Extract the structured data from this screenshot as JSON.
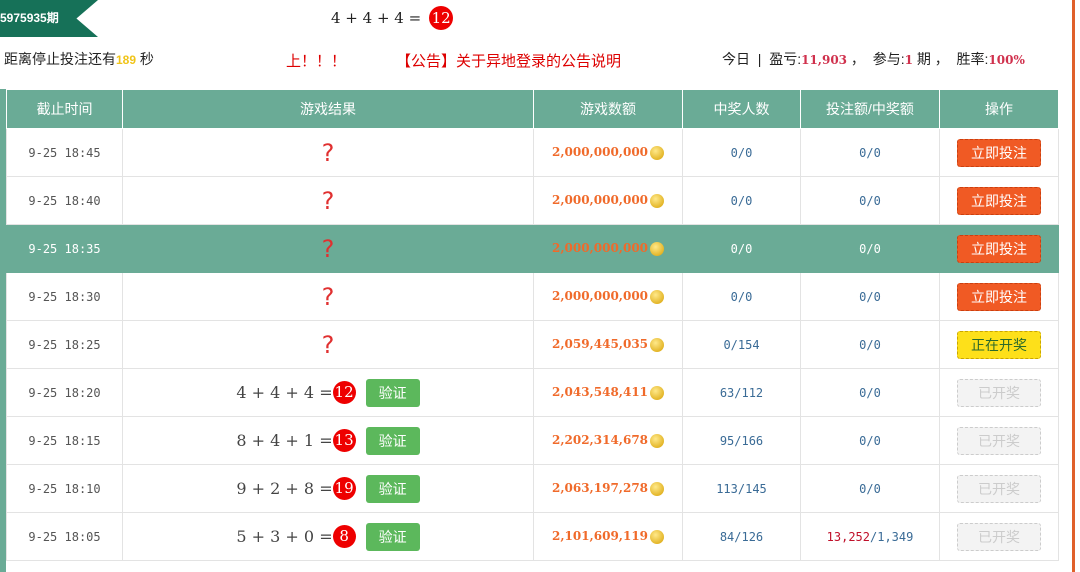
{
  "header": {
    "period": "5975935期",
    "equation": "4 + 4 + 4 =",
    "result": "12",
    "countdown_prefix": "距离停止投注还有",
    "countdown_seconds": "189",
    "countdown_suffix": "秒",
    "marquee_a": "上！！！",
    "marquee_b": "【公告】关于异地登录的公告说明",
    "marquee_c": "【"
  },
  "stats": {
    "today": "今日",
    "sep": "|",
    "profit_label": "盈亏:",
    "profit": "11,903",
    "sep2": "，",
    "join_label": "参与:",
    "join": "1",
    "join_unit": "期",
    "sep3": "，",
    "win_label": "胜率:",
    "win": "100%"
  },
  "columns": [
    "截止时间",
    "游戏结果",
    "游戏数额",
    "中奖人数",
    "投注额/中奖额",
    "操作"
  ],
  "rows": [
    {
      "time": "9-25 18:45",
      "result": "?",
      "amount": "2,000,000,000",
      "winners": "0/0",
      "bet": "0/0",
      "action": "立即投注",
      "state": "bet"
    },
    {
      "time": "9-25 18:40",
      "result": "?",
      "amount": "2,000,000,000",
      "winners": "0/0",
      "bet": "0/0",
      "action": "立即投注",
      "state": "bet"
    },
    {
      "time": "9-25 18:35",
      "result": "?",
      "amount": "2,000,000,000",
      "winners": "0/0",
      "bet": "0/0",
      "action": "立即投注",
      "state": "bet",
      "highlight": true
    },
    {
      "time": "9-25 18:30",
      "result": "?",
      "amount": "2,000,000,000",
      "winners": "0/0",
      "bet": "0/0",
      "action": "立即投注",
      "state": "bet"
    },
    {
      "time": "9-25 18:25",
      "result": "?",
      "amount": "2,059,445,035",
      "winners": "0/154",
      "bet": "0/0",
      "action": "正在开奖",
      "state": "opening"
    },
    {
      "time": "9-25 18:20",
      "eq": "4 + 4 + 4 =",
      "sum": "12",
      "verify": "验证",
      "amount": "2,043,548,411",
      "winners": "63/112",
      "bet": "0/0",
      "action": "已开奖",
      "state": "done"
    },
    {
      "time": "9-25 18:15",
      "eq": "8 + 4 + 1 =",
      "sum": "13",
      "verify": "验证",
      "amount": "2,202,314,678",
      "winners": "95/166",
      "bet": "0/0",
      "action": "已开奖",
      "state": "done"
    },
    {
      "time": "9-25 18:10",
      "eq": "9 + 2 + 8 =",
      "sum": "19",
      "verify": "验证",
      "amount": "2,063,197,278",
      "winners": "113/145",
      "bet": "0/0",
      "action": "已开奖",
      "state": "done"
    },
    {
      "time": "9-25 18:05",
      "eq": "5 + 3 + 0 =",
      "sum": "8",
      "verify": "验证",
      "amount": "2,101,609,119",
      "winners": "84/126",
      "bet_red": "13,252",
      "bet_sep": "/",
      "bet_blue": "1,349",
      "action": "已开奖",
      "state": "done"
    }
  ],
  "icons": {
    "coin": "gold-coin-icon"
  },
  "colors": {
    "header_green": "#6aab96",
    "period_green": "#167158",
    "bet_orange": "#f05a24",
    "opening_yellow": "#fde01a",
    "verify_green": "#5cb85c",
    "ball_red": "#ee0000"
  }
}
